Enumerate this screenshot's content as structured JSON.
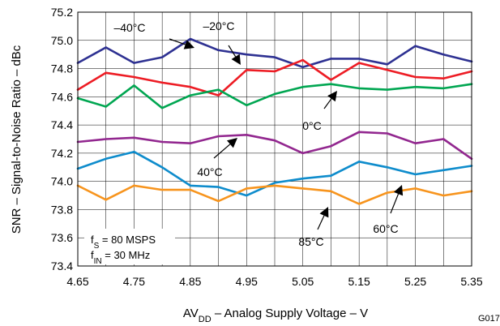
{
  "chart_data": {
    "type": "line",
    "title": "",
    "xlabel": {
      "main": "AV",
      "sub": "DD",
      "rest": " – Analog Supply Voltage – V"
    },
    "ylabel": "SNR – Signal-to-Noise Ratio – dBc",
    "figure_id": "G017",
    "xlim": [
      4.65,
      5.35
    ],
    "ylim": [
      73.4,
      75.2
    ],
    "grid": true,
    "x_ticks": [
      "4.65",
      "4.75",
      "4.85",
      "4.95",
      "5.05",
      "5.15",
      "5.25",
      "5.35"
    ],
    "y_ticks": [
      "73.4",
      "73.6",
      "73.8",
      "74.0",
      "74.2",
      "74.4",
      "74.6",
      "74.8",
      "75.0",
      "75.2"
    ],
    "x": [
      4.65,
      4.7,
      4.75,
      4.8,
      4.85,
      4.9,
      4.95,
      5.0,
      5.05,
      5.1,
      5.15,
      5.2,
      5.25,
      5.3,
      5.35
    ],
    "series": [
      {
        "name": "–40°C",
        "color": "#2e3192",
        "values": [
          74.84,
          74.95,
          74.84,
          74.88,
          75.01,
          74.93,
          74.9,
          74.88,
          74.81,
          74.87,
          74.87,
          74.83,
          74.96,
          74.9,
          74.85
        ]
      },
      {
        "name": "–20°C",
        "color": "#ed1c24",
        "values": [
          74.65,
          74.77,
          74.74,
          74.7,
          74.67,
          74.61,
          74.79,
          74.78,
          74.86,
          74.72,
          74.84,
          74.79,
          74.74,
          74.73,
          74.78
        ]
      },
      {
        "name": "0°C",
        "color": "#00a651",
        "values": [
          74.59,
          74.53,
          74.68,
          74.52,
          74.61,
          74.65,
          74.54,
          74.62,
          74.67,
          74.69,
          74.66,
          74.65,
          74.67,
          74.66,
          74.69
        ]
      },
      {
        "name": "40°C",
        "color": "#92278f",
        "values": [
          74.28,
          74.3,
          74.31,
          74.28,
          74.27,
          74.32,
          74.33,
          74.29,
          74.2,
          74.25,
          74.35,
          74.34,
          74.27,
          74.3,
          74.16
        ]
      },
      {
        "name": "60°C",
        "color": "#0e8ccc",
        "values": [
          74.09,
          74.16,
          74.21,
          74.1,
          73.97,
          73.96,
          73.9,
          73.99,
          74.02,
          74.04,
          74.14,
          74.1,
          74.05,
          74.08,
          74.11
        ]
      },
      {
        "name": "85°C",
        "color": "#f7941d",
        "values": [
          73.97,
          73.87,
          73.97,
          73.94,
          73.94,
          73.86,
          73.95,
          73.97,
          73.95,
          73.93,
          73.84,
          73.92,
          73.95,
          73.9,
          73.93
        ]
      }
    ],
    "annotations": [
      {
        "main": "f",
        "sub": "S",
        "rest": " = 80 MSPS"
      },
      {
        "main": "f",
        "sub": "IN",
        "rest": " = 30 MHz"
      }
    ]
  }
}
